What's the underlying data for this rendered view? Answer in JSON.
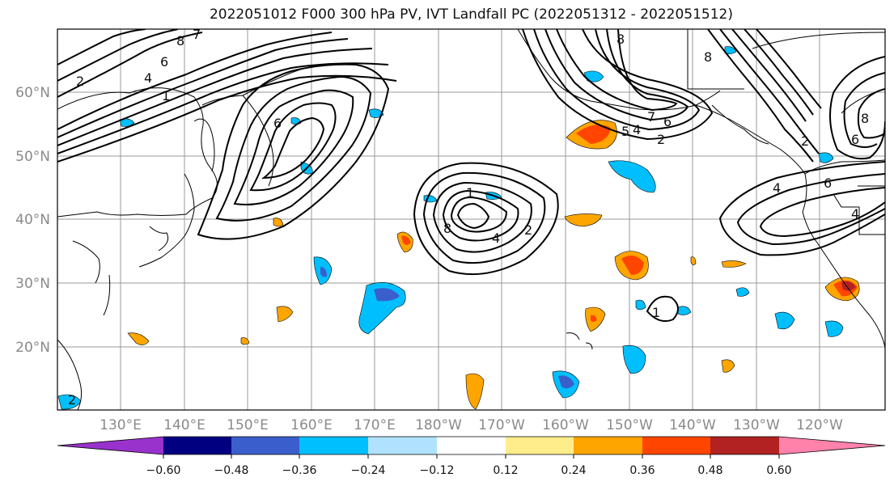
{
  "title": "2022051012 F000 300 hPa PV, IVT Landfall PC (2022051312 - 2022051512)",
  "map": {
    "lat_labels": [
      "20°N",
      "30°N",
      "40°N",
      "50°N",
      "60°N"
    ],
    "lon_labels": [
      "130°E",
      "140°E",
      "150°E",
      "160°E",
      "170°E",
      "180°W",
      "170°W",
      "160°W",
      "150°W",
      "140°W",
      "130°W",
      "120°W"
    ],
    "contour_labels": [
      "8",
      "7",
      "6",
      "4",
      "1",
      "2",
      "6",
      "8",
      "4",
      "2",
      "1",
      "7",
      "6",
      "5",
      "4",
      "2",
      "8",
      "8",
      "2",
      "4",
      "6",
      "8",
      "6",
      "4",
      "1",
      "2"
    ]
  },
  "colorbar": {
    "ticks": [
      "−0.60",
      "−0.48",
      "−0.36",
      "−0.24",
      "−0.12",
      "0.12",
      "0.24",
      "0.36",
      "0.48",
      "0.60"
    ],
    "colors": [
      "#9932CC",
      "#000080",
      "#3A5FCD",
      "#00BFFF",
      "#B0E2FF",
      "#FFFFFF",
      "#FFEC8B",
      "#FFA500",
      "#FF4500",
      "#B22222",
      "#FF82AB"
    ]
  }
}
